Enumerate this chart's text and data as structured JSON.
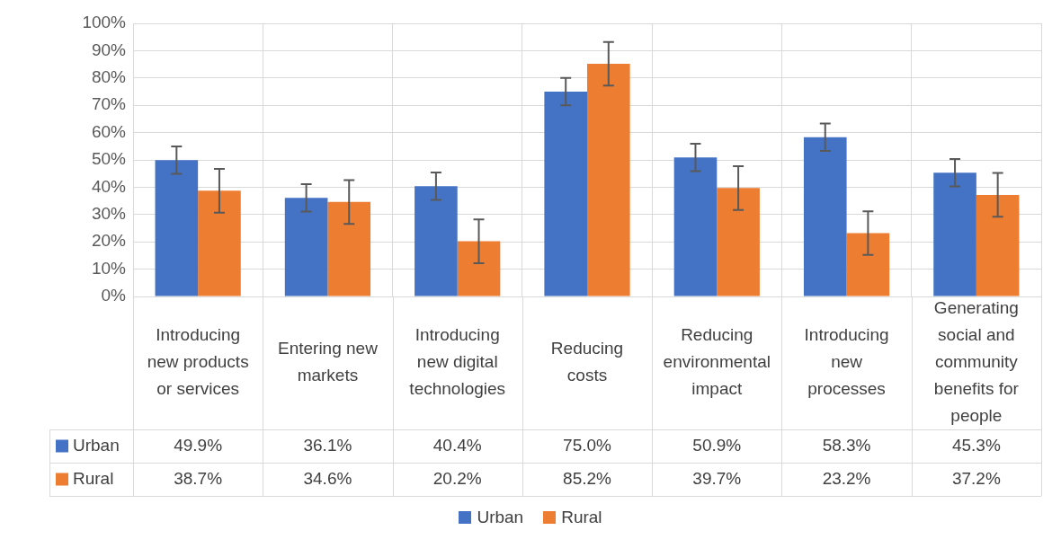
{
  "chart_data": {
    "type": "bar",
    "categories": [
      "Introducing new products or services",
      "Entering new markets",
      "Introducing new digital technologies",
      "Reducing costs",
      "Reducing environmental impact",
      "Introducing new processes",
      "Generating social and community benefits for people"
    ],
    "series": [
      {
        "name": "Urban",
        "color": "#4472c4",
        "values": [
          49.9,
          36.1,
          40.4,
          75.0,
          50.9,
          58.3,
          45.3
        ],
        "errors": [
          5,
          5,
          5,
          5,
          5,
          5,
          5
        ],
        "value_labels": [
          "49.9%",
          "36.1%",
          "40.4%",
          "75.0%",
          "50.9%",
          "58.3%",
          "45.3%"
        ]
      },
      {
        "name": "Rural",
        "color": "#ed7d31",
        "values": [
          38.7,
          34.6,
          20.2,
          85.2,
          39.7,
          23.2,
          37.2
        ],
        "errors": [
          8,
          8,
          8,
          8,
          8,
          8,
          8
        ],
        "value_labels": [
          "38.7%",
          "34.6%",
          "20.2%",
          "85.2%",
          "39.7%",
          "23.2%",
          "37.2%"
        ]
      }
    ],
    "ylim": [
      0,
      100
    ],
    "yticks": [
      {
        "value": 0,
        "label": "0%"
      },
      {
        "value": 10,
        "label": "10%"
      },
      {
        "value": 20,
        "label": "20%"
      },
      {
        "value": 30,
        "label": "30%"
      },
      {
        "value": 40,
        "label": "40%"
      },
      {
        "value": 50,
        "label": "50%"
      },
      {
        "value": 60,
        "label": "60%"
      },
      {
        "value": 70,
        "label": "70%"
      },
      {
        "value": 80,
        "label": "80%"
      },
      {
        "value": 90,
        "label": "90%"
      },
      {
        "value": 100,
        "label": "100%"
      }
    ],
    "grid": true,
    "legend": "bottom"
  }
}
